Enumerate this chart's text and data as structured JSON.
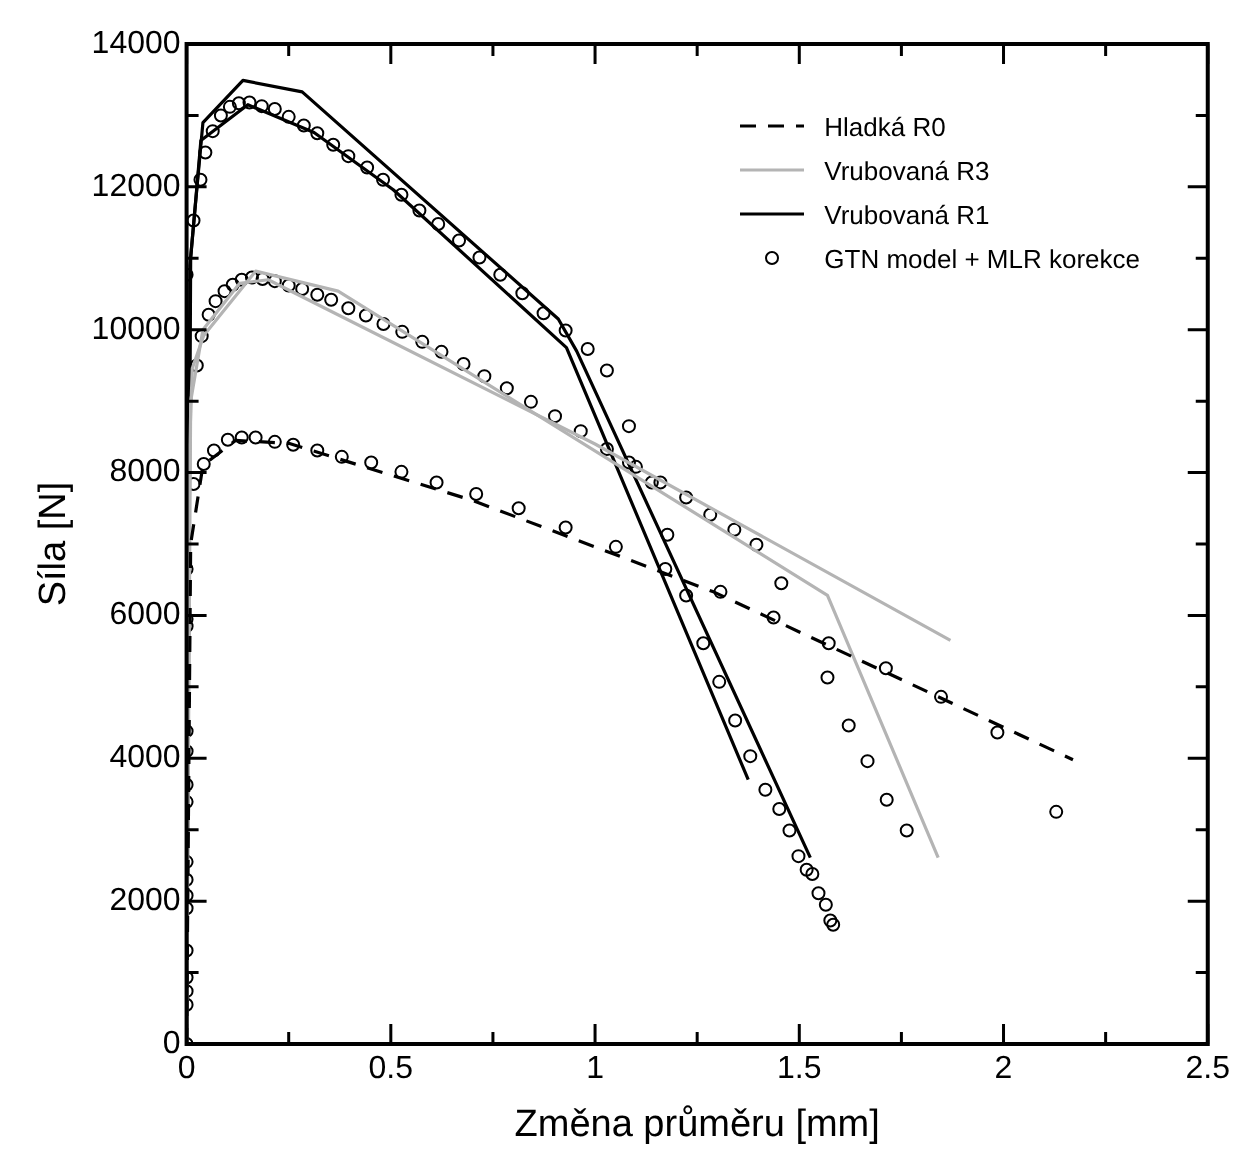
{
  "chart_data": {
    "type": "line",
    "xlabel": "Změna průměru [mm]",
    "ylabel": "Síla [N]",
    "xlim": [
      0,
      2.5
    ],
    "ylim": [
      0,
      14000
    ],
    "xticks": [
      0,
      {
        "value": 0.25,
        "label": null
      },
      0.5,
      {
        "value": 0.75,
        "label": null
      },
      1,
      {
        "value": 1.25,
        "label": null
      },
      1.5,
      {
        "value": 1.75,
        "label": null
      },
      2,
      {
        "value": 2.25,
        "label": null
      },
      2.5
    ],
    "yticks": [
      0,
      {
        "value": 1000,
        "label": null
      },
      2000,
      {
        "value": 3000,
        "label": null
      },
      4000,
      {
        "value": 5000,
        "label": null
      },
      6000,
      {
        "value": 7000,
        "label": null
      },
      8000,
      {
        "value": 9000,
        "label": null
      },
      10000,
      {
        "value": 11000,
        "label": null
      },
      12000,
      {
        "value": 13000,
        "label": null
      },
      14000
    ],
    "grid": false,
    "legend": "top right",
    "series": [
      {
        "name": "Hladká R0",
        "type": "line",
        "color": "#000000",
        "line_style": "dashed",
        "marker": "none",
        "x": [
          0,
          0.01,
          0.04,
          0.12,
          0.25,
          0.7,
          1.29,
          2.17
        ],
        "values": [
          0,
          7000,
          8100,
          8450,
          8410,
          7610,
          6330,
          3980
        ]
      },
      {
        "name": "Vrubovaná R3",
        "type": "line",
        "color": "#b4b4b4",
        "line_style": "solid",
        "marker": "none",
        "x": [
          0,
          0.005,
          0.014,
          0.042,
          0.169,
          0.371,
          1.569,
          1.84
        ],
        "values": [
          0,
          8000,
          9460,
          9920,
          10820,
          10540,
          6280,
          2610
        ]
      },
      {
        "type": "line",
        "color": "#b4b4b4",
        "line_style": "solid",
        "marker": "none",
        "x": [
          0,
          0.01,
          0.04,
          0.13,
          0.2,
          1.0,
          1.87
        ],
        "values": [
          0,
          9000,
          10000,
          10650,
          10700,
          8400,
          5650
        ]
      },
      {
        "name": "Vrubovaná R1",
        "type": "line",
        "color": "#000000",
        "line_style": "solid",
        "marker": "none",
        "x": [
          0,
          0.008,
          0.04,
          0.138,
          0.283,
          0.91,
          0.955,
          1.527
        ],
        "values": [
          0,
          10900,
          12900,
          13490,
          13330,
          10150,
          9700,
          2610
        ]
      },
      {
        "type": "line",
        "color": "#000000",
        "line_style": "solid",
        "marker": "none",
        "x": [
          0,
          0.01,
          0.035,
          0.15,
          0.312,
          0.506,
          0.93,
          1.375
        ],
        "values": [
          0,
          11000,
          12650,
          13150,
          12760,
          11960,
          9750,
          3700
        ]
      },
      {
        "name": "GTN model + MLR korekce",
        "type": "scatter",
        "color": "#000000",
        "marker": "circle",
        "x": [
          0,
          0,
          0,
          0,
          0,
          0,
          0,
          0,
          0,
          0,
          0,
          0,
          0,
          0,
          0,
          0,
          0.017,
          0.042,
          0.067,
          0.101,
          0.135,
          0.169,
          0.216,
          0.261,
          0.32,
          0.38,
          0.452,
          0.526,
          0.612,
          0.709,
          0.813,
          0.928,
          1.051,
          1.172,
          1.307,
          1.437,
          1.572,
          1.712,
          1.847,
          1.985,
          2.129,
          1.456,
          1.569,
          1.621,
          1.667,
          1.714,
          1.763,
          0.025,
          0.037,
          0.054,
          0.071,
          0.093,
          0.113,
          0.135,
          0.16,
          0.186,
          0.216,
          0.25,
          0.283,
          0.32,
          0.354,
          0.396,
          0.439,
          0.482,
          0.528,
          0.577,
          0.624,
          0.678,
          0.729,
          0.784,
          0.843,
          0.902,
          0.965,
          1.029,
          1.083,
          1.139,
          1.16,
          1.223,
          1.282,
          1.341,
          1.395,
          0,
          0.017,
          0.034,
          0.046,
          0.064,
          0.084,
          0.106,
          0.128,
          0.154,
          0.184,
          0.216,
          0.25,
          0.287,
          0.32,
          0.359,
          0.396,
          0.442,
          0.481,
          0.526,
          0.57,
          0.616,
          0.667,
          0.717,
          0.768,
          0.822,
          0.874,
          0.928,
          0.982,
          1.029,
          1.083,
          1.1,
          1.177,
          1.223,
          1.265,
          1.304,
          1.343,
          1.38,
          1.417,
          1.451,
          1.476,
          1.498,
          1.518,
          1.532,
          1.547,
          1.565,
          1.576,
          1.583
        ],
        "values": [
          0,
          550,
          740,
          930,
          1310,
          1900,
          2080,
          2300,
          2550,
          3390,
          3630,
          4100,
          4380,
          5850,
          5950,
          6650,
          7840,
          8120,
          8310,
          8460,
          8490,
          8490,
          8430,
          8390,
          8310,
          8220,
          8140,
          8010,
          7860,
          7700,
          7500,
          7230,
          6960,
          6650,
          6330,
          5970,
          5610,
          5260,
          4860,
          4360,
          3250,
          6450,
          5130,
          4460,
          3960,
          3420,
          2990,
          9500,
          9910,
          10210,
          10400,
          10540,
          10630,
          10700,
          10730,
          10710,
          10680,
          10620,
          10570,
          10490,
          10420,
          10300,
          10200,
          10080,
          9970,
          9830,
          9690,
          9520,
          9350,
          9180,
          8990,
          8790,
          8580,
          8330,
          8140,
          7860,
          7860,
          7650,
          7410,
          7200,
          6990,
          10770,
          11530,
          12100,
          12480,
          12780,
          13000,
          13120,
          13170,
          13180,
          13130,
          13090,
          12980,
          12860,
          12750,
          12590,
          12430,
          12270,
          12100,
          11890,
          11670,
          11480,
          11250,
          11010,
          10770,
          10510,
          10230,
          9990,
          9730,
          9430,
          8650,
          8080,
          7130,
          6280,
          5610,
          5070,
          4530,
          4030,
          3560,
          3290,
          2990,
          2630,
          2440,
          2380,
          2110,
          1950,
          1730,
          1670
        ]
      }
    ]
  }
}
